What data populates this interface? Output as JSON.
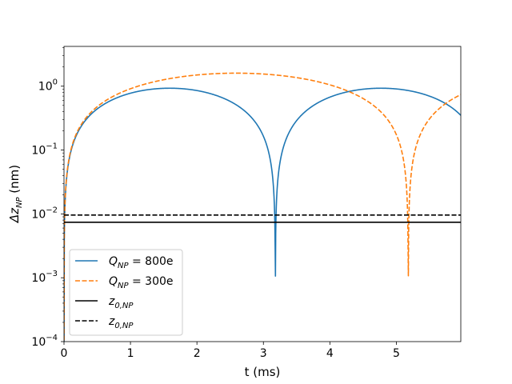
{
  "chart_data": {
    "type": "line",
    "title": "",
    "xlabel": "t (ms)",
    "ylabel_main": "Δz",
    "ylabel_sub": "NP",
    "ylabel_unit": " (nm)",
    "yscale": "log",
    "xlim": [
      0,
      5.97
    ],
    "ylim": [
      0.0001,
      4.2
    ],
    "grid": false,
    "legend_position": "lower-left",
    "x_ticks": [
      {
        "value": 0,
        "label": "0"
      },
      {
        "value": 1,
        "label": "1"
      },
      {
        "value": 2,
        "label": "2"
      },
      {
        "value": 3,
        "label": "3"
      },
      {
        "value": 4,
        "label": "4"
      },
      {
        "value": 5,
        "label": "5"
      }
    ],
    "y_ticks": [
      {
        "value": 0.0001,
        "base": "10",
        "exp": "−4"
      },
      {
        "value": 0.001,
        "base": "10",
        "exp": "−3"
      },
      {
        "value": 0.01,
        "base": "10",
        "exp": "−2"
      },
      {
        "value": 0.1,
        "base": "10",
        "exp": "−1"
      },
      {
        "value": 1,
        "base": "10",
        "exp": "0"
      }
    ],
    "series": [
      {
        "legend_main": "Q",
        "legend_sub": "NP",
        "legend_rest": " = 800e",
        "kind": "curve",
        "style": "solid",
        "color": "#1f77b4",
        "amplitude": 0.93,
        "period_ms": 6.36,
        "x": [
          0.0,
          0.1,
          0.2,
          0.4,
          0.6,
          0.8,
          1.0,
          1.2,
          1.4,
          1.59,
          1.8,
          2.0,
          2.2,
          2.4,
          2.6,
          2.8,
          2.95,
          3.05,
          3.12,
          3.16,
          3.18,
          3.2,
          3.24,
          3.31,
          3.41,
          3.56,
          3.76,
          3.96,
          4.16,
          4.36,
          4.56,
          4.77,
          4.96,
          5.16,
          5.36,
          5.56,
          5.76,
          5.97
        ],
        "y": [
          0.0001,
          0.0913,
          0.1804,
          0.3501,
          0.5047,
          0.6394,
          0.7498,
          0.8322,
          0.884,
          0.93,
          0.8966,
          0.8511,
          0.7799,
          0.6777,
          0.5531,
          0.4099,
          0.2944,
          0.2033,
          0.1339,
          0.0883,
          0.0004,
          0.0118,
          0.0395,
          0.1077,
          0.2003,
          0.3289,
          0.4867,
          0.6216,
          0.735,
          0.8284,
          0.8878,
          0.93,
          0.9103,
          0.862,
          0.779,
          0.6661,
          0.5286,
          0.113
        ]
      },
      {
        "legend_main": "Q",
        "legend_sub": "NP",
        "legend_rest": " = 300e",
        "kind": "curve",
        "style": "dashed",
        "color": "#ff7f0e",
        "amplitude": 1.6,
        "period_ms": 10.36,
        "x": [
          0.0,
          0.1,
          0.2,
          0.4,
          0.6,
          0.8,
          1.0,
          1.2,
          1.4,
          1.6,
          1.8,
          2.0,
          2.2,
          2.4,
          2.59,
          2.8,
          3.0,
          3.2,
          3.4,
          3.6,
          3.8,
          4.0,
          4.2,
          4.4,
          4.6,
          4.8,
          4.95,
          5.05,
          5.12,
          5.16,
          5.18,
          5.2,
          5.24,
          5.31,
          5.41,
          5.56,
          5.76,
          5.97
        ],
        "y": [
          0.0001,
          0.0078,
          0.0311,
          0.12,
          0.2541,
          0.4157,
          0.584,
          0.7499,
          0.9047,
          1.0466,
          1.1739,
          1.288,
          1.3917,
          1.487,
          1.6,
          1.572,
          1.526,
          1.453,
          1.352,
          1.218,
          1.049,
          0.848,
          0.629,
          0.417,
          0.238,
          0.105,
          0.04,
          0.014,
          0.0035,
          0.0008,
          0.0001,
          0.0001,
          0.003,
          0.015,
          0.048,
          0.123,
          0.24,
          0.35
        ]
      },
      {
        "legend_main": "z",
        "legend_sub": "0,NP",
        "legend_rest": "",
        "kind": "hline",
        "style": "solid",
        "color": "#000000",
        "value": 0.0074
      },
      {
        "legend_main": "z",
        "legend_sub": "0,NP",
        "legend_rest": "",
        "kind": "hline",
        "style": "dashed",
        "color": "#000000",
        "value": 0.0096
      }
    ]
  }
}
